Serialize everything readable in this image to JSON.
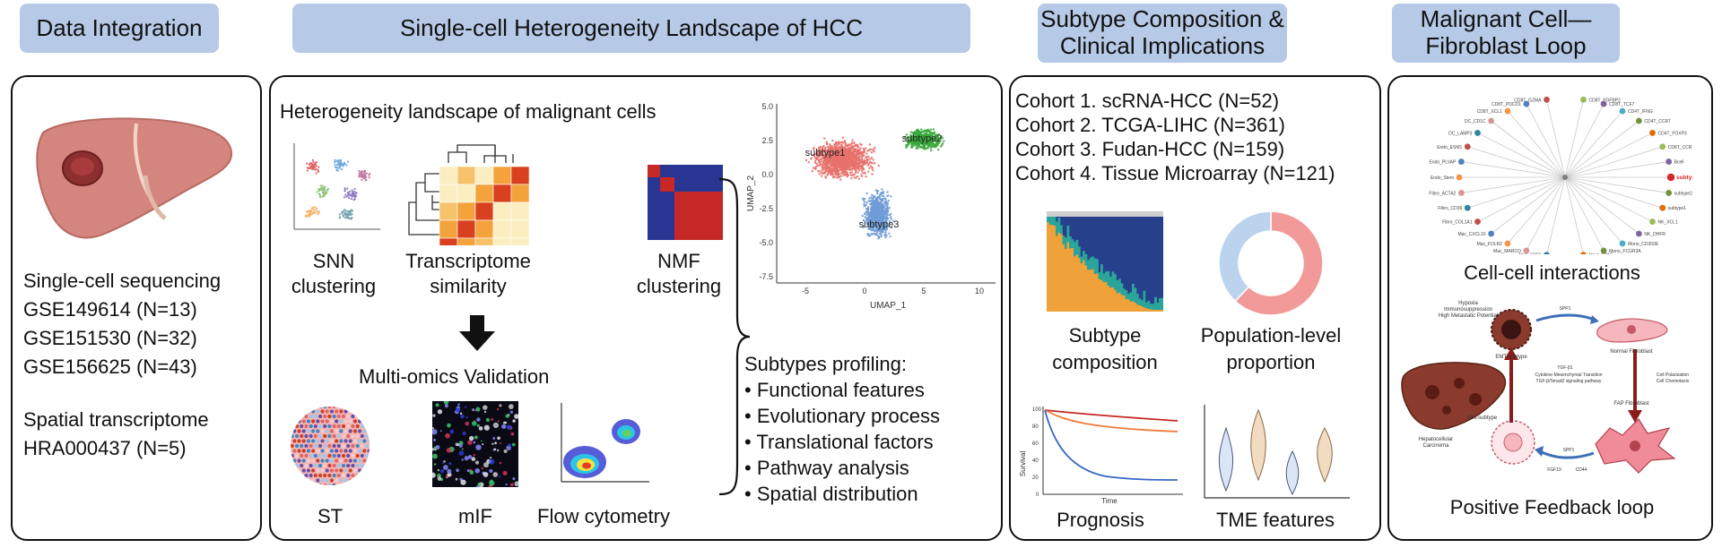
{
  "headers": {
    "data_integration": "Data Integration",
    "landscape": "Single-cell Heterogeneity Landscape of HCC",
    "subtype": [
      "Subtype Composition &",
      "Clinical Implications"
    ],
    "loop": [
      "Malignant Cell—",
      "Fibroblast Loop"
    ]
  },
  "data_integration": {
    "scrna_title": "Single-cell sequencing",
    "scrna_sets": [
      "GSE149614 (N=13)",
      "GSE151530 (N=32)",
      "GSE156625 (N=43)"
    ],
    "st_title": "Spatial transcriptome",
    "st_set": "HRA000437 (N=5)"
  },
  "landscape": {
    "title": "Heterogeneity landscape of malignant cells",
    "snn": [
      "SNN",
      "clustering"
    ],
    "similarity": [
      "Transcriptome",
      "similarity"
    ],
    "nmf": [
      "NMF",
      "clustering"
    ],
    "validation": "Multi-omics Validation",
    "st": "ST",
    "mif": "mIF",
    "flow": "Flow cytometry",
    "umap": {
      "xlabel": "UMAP_1",
      "ylabel": "UMAP_2",
      "xticks": [
        "-5",
        "0",
        "5",
        "10"
      ],
      "yticks": [
        "5.0",
        "2.5",
        "0.0",
        "-2.5",
        "-5.0",
        "-7.5"
      ],
      "clusters": [
        "subtype1",
        "subtype2",
        "subtype3"
      ]
    },
    "profiling_title": "Subtypes profiling:",
    "profiling_items": [
      "• Functional features",
      "• Evolutionary process",
      "• Translational factors",
      "• Pathway analysis",
      "• Spatial distribution"
    ]
  },
  "subtype": {
    "cohorts": [
      "Cohort 1. scRNA-HCC (N=52)",
      "Cohort 2. TCGA-LIHC (N=361)",
      "Cohort 3. Fudan-HCC (N=159)",
      "Cohort 4. Tissue Microarray (N=121)"
    ],
    "composition": [
      "Subtype",
      "composition"
    ],
    "proportion": [
      "Population-level",
      "proportion"
    ],
    "prognosis": "Prognosis",
    "tme": "TME features",
    "survival_ylabel": "Survival",
    "survival_xlabel": "Time",
    "survival_yticks": [
      "100",
      "80",
      "60",
      "40",
      "20",
      "0"
    ],
    "donut_fraction_pink": 0.62
  },
  "loop": {
    "interactions": "Cell-cell interactions",
    "feedback": "Positive Feedback loop",
    "network_labels": [
      "CD8T_GZMA",
      "CD8T_FGFBP2",
      "CD8T_PDCD1",
      "CD8T_TCF7",
      "CD8T_XCL1",
      "CD4T_IFNG",
      "DC_CD1C",
      "CD4T_CCR7",
      "DC_LAMP3",
      "CD4T_FOXP3",
      "Endo_ESM1",
      "CD8T_CCR7",
      "Endo_PLVAP",
      "Bcell",
      "Endo_Stem",
      "subtype3",
      "Fibro_ACTA2",
      "subtype2",
      "Fibro_CD36",
      "subtype1",
      "Fibro_COL1A1",
      "NK_XCL1",
      "Mac_CXCL10",
      "NK_DHFR",
      "Mac_FOLR2",
      "Mono_CD300E",
      "Mac_MARCO",
      "Mono_FCGR3A",
      "Mac_SPP1",
      "Mast_CPA3"
    ],
    "highlight": "subtype3",
    "diagram_labels": {
      "hypoxia": [
        "Hypoxia",
        "Immunosuppression",
        "High Metastatic Potential"
      ],
      "emt_subtype": "EMT-subtype",
      "normal_fib": "Normal Fibroblast",
      "tgf": [
        "SPP1",
        "TGF-β1",
        "Cytokine-Mesenchymal Transition",
        "TGF-β/Smad2 signaling pathway"
      ],
      "polarize": [
        "Cell Polarization",
        "Cell Chemotaxis"
      ],
      "pro_subtype": "Pro-subtype",
      "hcc": [
        "Hepatocellular",
        "Carcinoma"
      ],
      "fap_fib": "FAP Fibroblast",
      "molecules": [
        "SPP1",
        "FGF19",
        "CD44"
      ]
    }
  },
  "colors": {
    "header_bg": "#b6c9e6",
    "pink": "#e8716b",
    "green": "#3aa93d",
    "blue": "#6f9bd6",
    "liver": "#d4857d"
  }
}
